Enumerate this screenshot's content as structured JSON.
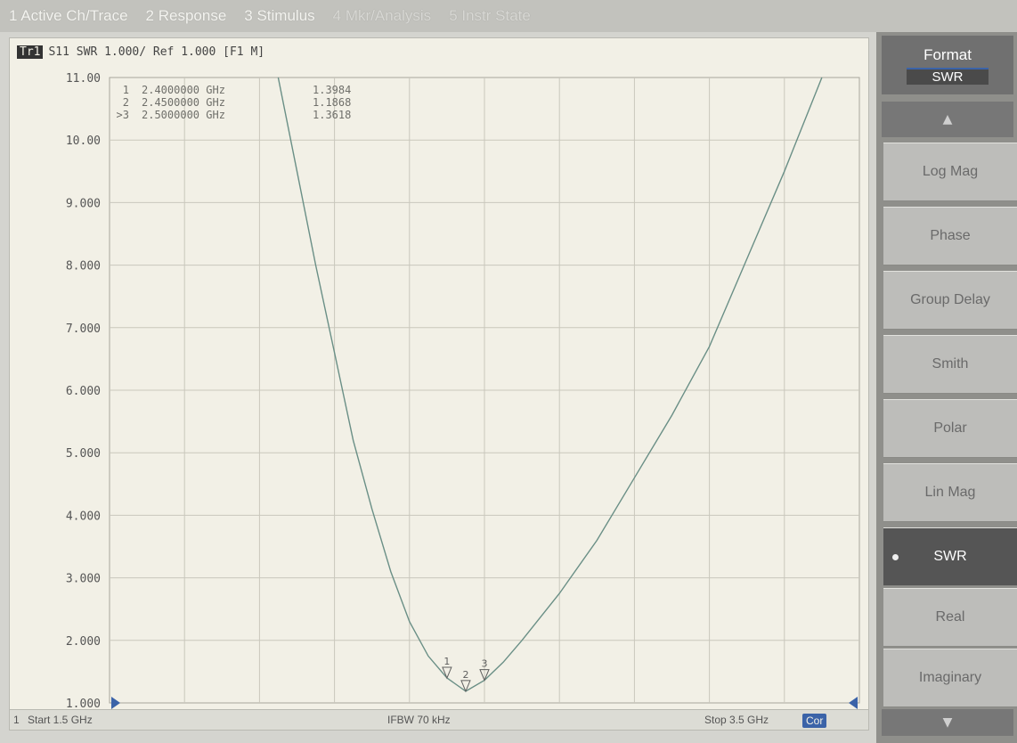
{
  "menubar": {
    "items": [
      "1 Active Ch/Trace",
      "2 Response",
      "3 Stimulus",
      "4 Mkr/Analysis",
      "5 Instr State"
    ]
  },
  "plot": {
    "channel_tag": "Tr1",
    "header": "S11 SWR 1.000/ Ref 1.000 [F1 M]",
    "markers": [
      {
        "id": "1",
        "freq": "2.4000000 GHz",
        "value": "1.3984"
      },
      {
        "id": "2",
        "freq": "2.4500000 GHz",
        "value": "1.1868"
      },
      {
        "id": ">3",
        "freq": "2.5000000 GHz",
        "value": "1.3618"
      }
    ],
    "status": {
      "start": "Start 1.5 GHz",
      "ifbw": "IFBW 70 kHz",
      "stop": "Stop 3.5 GHz",
      "cor": "Cor",
      "channel": "1"
    }
  },
  "chart_data": {
    "type": "line",
    "title": "",
    "xlabel": "",
    "ylabel": "",
    "xlim": [
      1.5,
      3.5
    ],
    "ylim": [
      1.0,
      11.0
    ],
    "y_ticks": [
      "1.000",
      "2.000",
      "3.000",
      "4.000",
      "5.000",
      "6.000",
      "7.000",
      "8.000",
      "9.000",
      "10.00",
      "11.00"
    ],
    "grid": true,
    "reference_value": 1.0,
    "series": [
      {
        "x": [
          1.95,
          2.0,
          2.05,
          2.1,
          2.15,
          2.2,
          2.25,
          2.3,
          2.35,
          2.4,
          2.45,
          2.5,
          2.55,
          2.6,
          2.7,
          2.8,
          2.9,
          3.0,
          3.1,
          3.2,
          3.3,
          3.4
        ],
        "y": [
          11.0,
          9.5,
          8.0,
          6.6,
          5.2,
          4.1,
          3.1,
          2.3,
          1.75,
          1.3984,
          1.1868,
          1.3618,
          1.65,
          2.0,
          2.75,
          3.6,
          4.6,
          5.6,
          6.7,
          8.1,
          9.5,
          11.0
        ]
      }
    ],
    "marker_points": [
      {
        "label": "1",
        "x": 2.4,
        "y": 1.3984
      },
      {
        "label": "2",
        "x": 2.45,
        "y": 1.1868
      },
      {
        "label": "3",
        "x": 2.5,
        "y": 1.3618
      }
    ],
    "colors": {
      "trace": "#6a8f86",
      "grid": "#c9c7bc",
      "marker": "#5e5e5e",
      "ref": "#3b63a8"
    }
  },
  "softkeys": {
    "title": "Format",
    "current": "SWR",
    "items": [
      "Log Mag",
      "Phase",
      "Group Delay",
      "Smith",
      "Polar",
      "Lin Mag",
      "SWR",
      "Real",
      "Imaginary"
    ],
    "active": "SWR"
  }
}
